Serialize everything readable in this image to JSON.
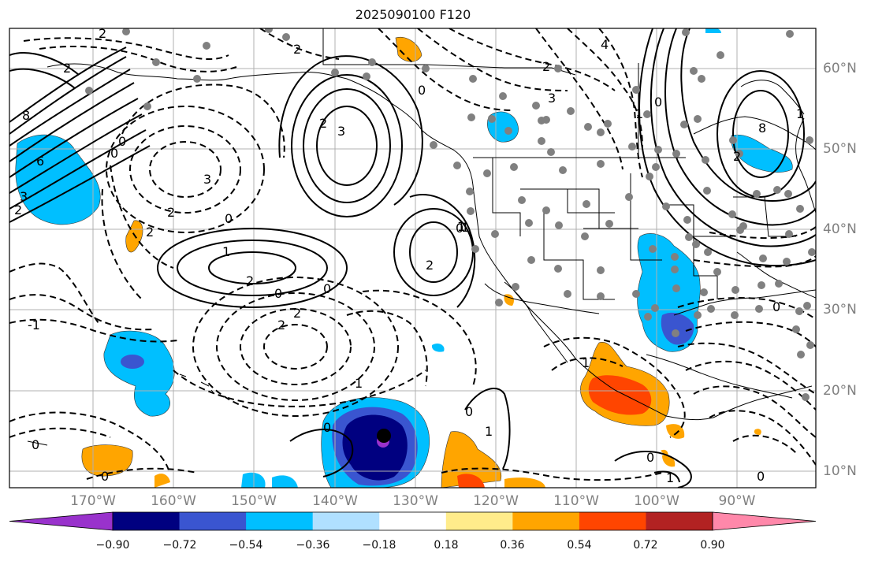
{
  "title": "2025090100 F120",
  "lon_labels": [
    "170°W",
    "160°W",
    "150°W",
    "140°W",
    "130°W",
    "120°W",
    "110°W",
    "100°W",
    "90°W"
  ],
  "lat_labels": [
    "60°N",
    "50°N",
    "40°N",
    "30°N",
    "20°N",
    "10°N"
  ],
  "colorbar": {
    "ticks": [
      "−0.90",
      "−0.72",
      "−0.54",
      "−0.36",
      "−0.18",
      "0.18",
      "0.36",
      "0.54",
      "0.72",
      "0.90"
    ],
    "colors": [
      "#9932CC",
      "#000080",
      "#3A55D0",
      "#00BFFF",
      "#B0E0FF",
      "#FFFFFF",
      "#FFEC8B",
      "#FFA500",
      "#FF4500",
      "#B22222",
      "#FF88AA"
    ]
  },
  "contour_labels": [
    "2",
    "2",
    "8",
    "6",
    "3",
    "2",
    "0",
    "0",
    "3",
    "2",
    "2",
    "0",
    "1",
    "2",
    "0",
    "0",
    "2",
    "3",
    "2",
    "0",
    "1",
    "2",
    "0",
    "2",
    "2",
    "1",
    "0",
    "0",
    "0",
    "1",
    "0",
    "1",
    "2",
    "3",
    "4",
    "8",
    "0",
    "2",
    "0",
    "1",
    "0",
    "1",
    "0",
    "-1",
    "1",
    "1"
  ],
  "colors": {
    "map_border": "#000000",
    "gridline": "#b0b0b0",
    "station_dot": "#808080",
    "label_gray": "#808080"
  }
}
